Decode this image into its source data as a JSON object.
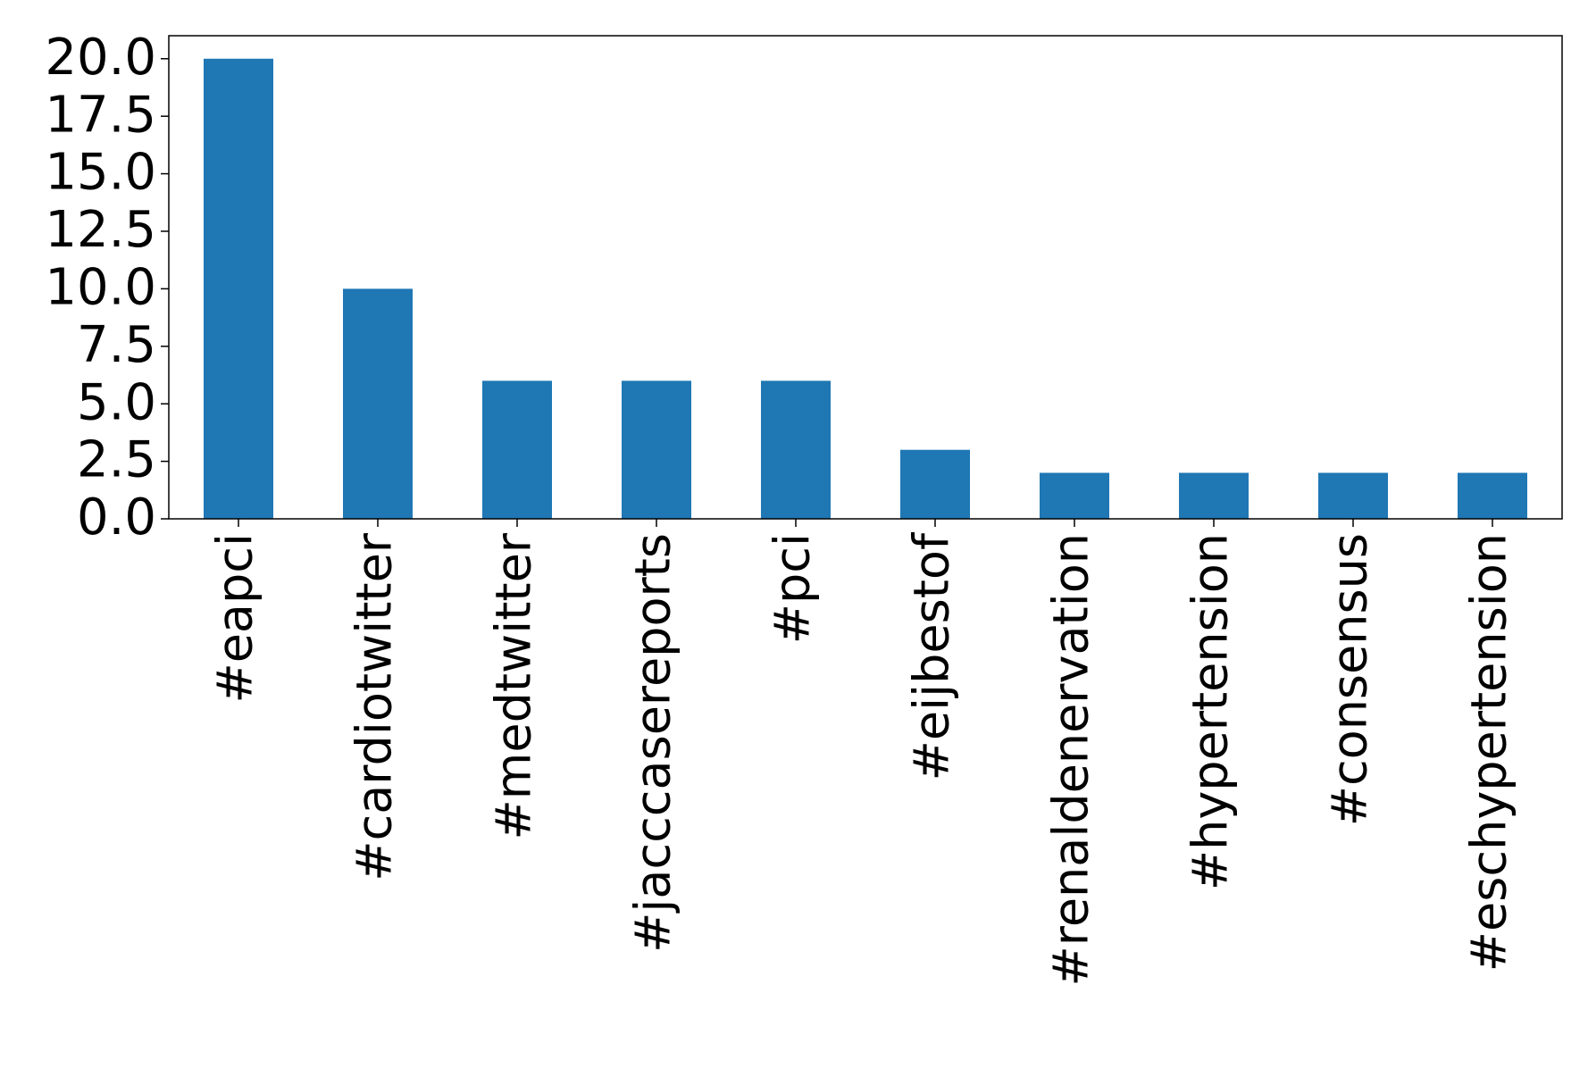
{
  "chart_data": {
    "type": "bar",
    "categories": [
      "#eapci",
      "#cardiotwitter",
      "#medtwitter",
      "#jacccasereports",
      "#pci",
      "#eijbestof",
      "#renaldenervation",
      "#hypertension",
      "#consensus",
      "#eschypertension"
    ],
    "values": [
      20,
      10,
      6,
      6,
      6,
      3,
      2,
      2,
      2,
      2
    ],
    "color": "#1f77b4",
    "ylim": [
      0,
      21
    ],
    "yticks": [
      {
        "value": 0,
        "label": "0.0"
      },
      2.5,
      {
        "value": 5,
        "label": "5.0"
      },
      7.5,
      {
        "value": 10,
        "label": "10.0"
      },
      12.5,
      {
        "value": 15,
        "label": "15.0"
      },
      17.5,
      {
        "value": 20,
        "label": "20.0"
      }
    ],
    "grid": false
  }
}
